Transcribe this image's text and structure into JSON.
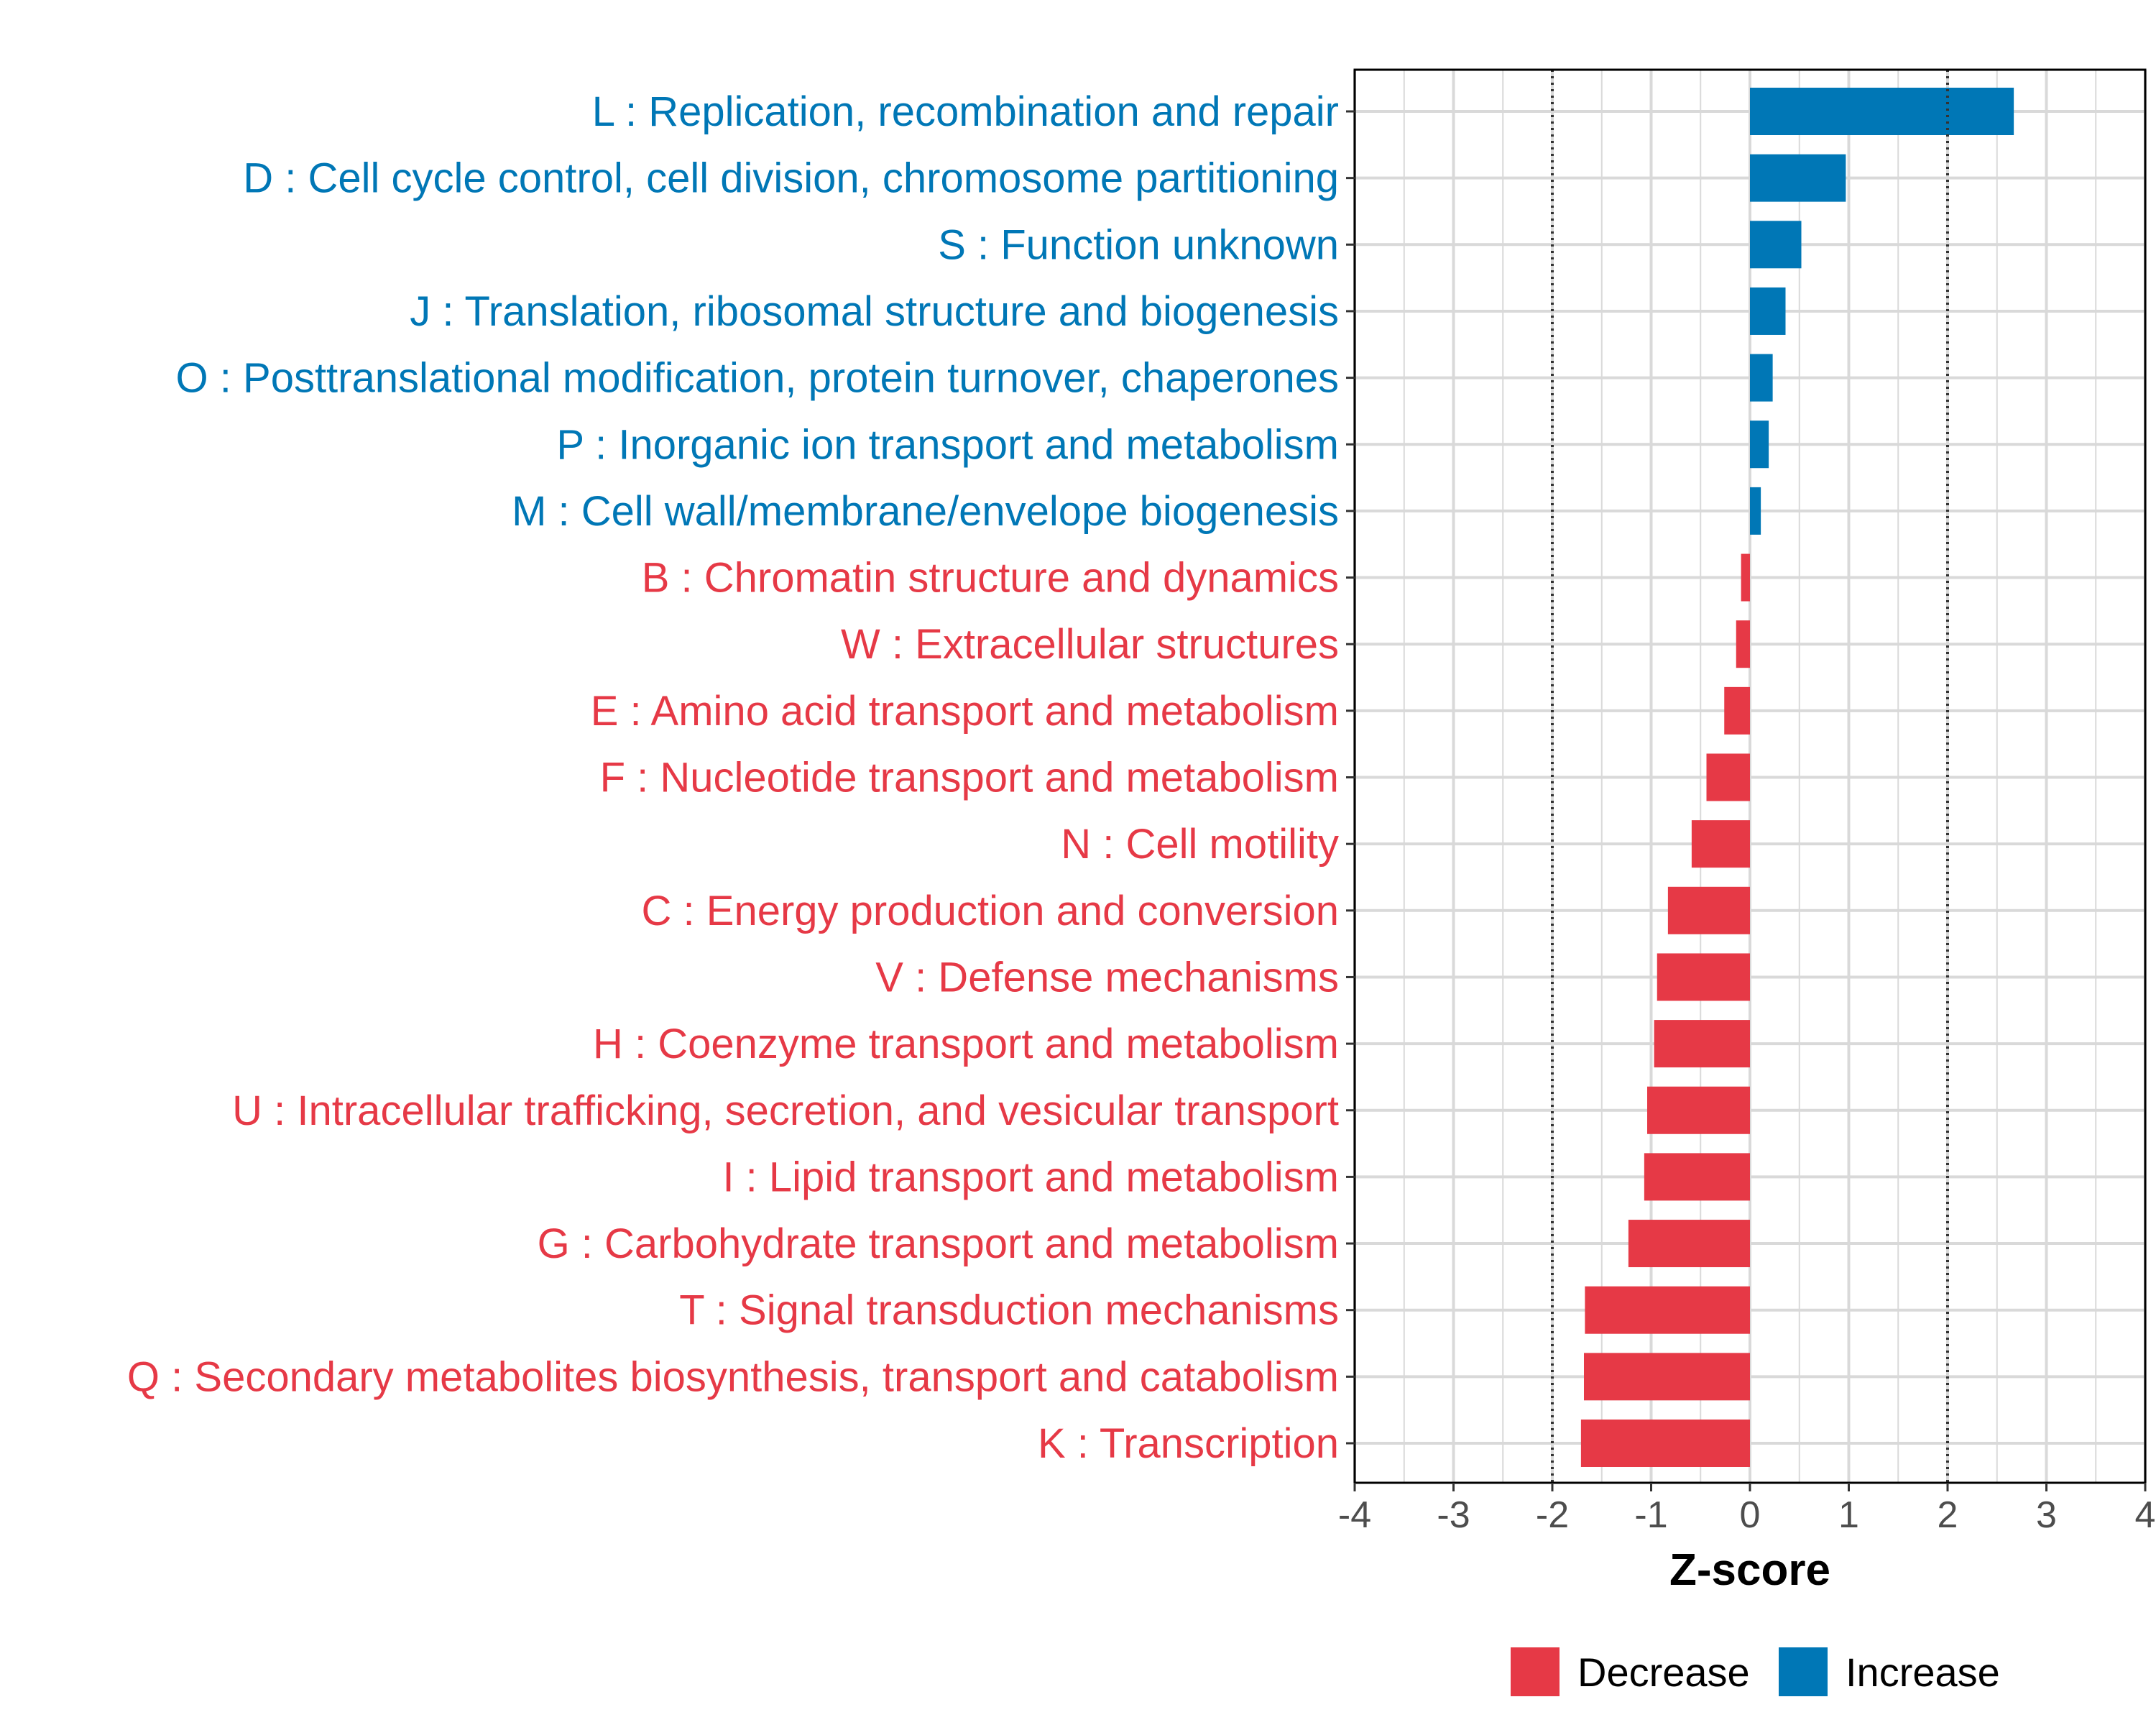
{
  "chart_data": {
    "type": "bar",
    "orientation": "horizontal",
    "xlabel": "Z-score",
    "xlim": [
      -4,
      4
    ],
    "xticks": [
      -4,
      -3,
      -2,
      -1,
      0,
      1,
      2,
      3,
      4
    ],
    "threshold_lines": [
      -2,
      2
    ],
    "grid": true,
    "categories": [
      "L : Replication, recombination and repair",
      "D : Cell cycle control, cell division, chromosome partitioning",
      "S : Function unknown",
      "J : Translation, ribosomal structure and biogenesis",
      "O : Posttranslational modification, protein turnover, chaperones",
      "P : Inorganic ion transport and metabolism",
      "M : Cell wall/membrane/envelope biogenesis",
      "B : Chromatin structure and dynamics",
      "W : Extracellular structures",
      "E : Amino acid transport and metabolism",
      "F : Nucleotide transport and metabolism",
      "N : Cell motility",
      "C : Energy production and conversion",
      "V : Defense mechanisms",
      "H : Coenzyme transport and metabolism",
      "U : Intracellular trafficking, secretion, and vesicular transport",
      "I : Lipid transport and metabolism",
      "G : Carbohydrate transport and metabolism",
      "T : Signal transduction mechanisms",
      "Q : Secondary metabolites biosynthesis, transport and catabolism",
      "K : Transcription"
    ],
    "values": [
      2.67,
      0.97,
      0.52,
      0.36,
      0.23,
      0.19,
      0.11,
      -0.09,
      -0.14,
      -0.26,
      -0.44,
      -0.59,
      -0.83,
      -0.94,
      -0.97,
      -1.04,
      -1.07,
      -1.23,
      -1.67,
      -1.68,
      -1.71
    ],
    "legend": {
      "position": "bottom-right",
      "entries": [
        {
          "label": "Decrease",
          "color": "#e63946"
        },
        {
          "label": "Increase",
          "color": "#0077b6"
        }
      ]
    }
  }
}
